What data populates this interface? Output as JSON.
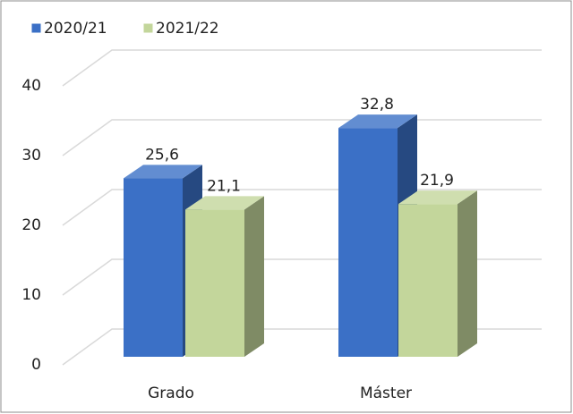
{
  "chart_data": {
    "type": "bar3d",
    "categories": [
      "Grado",
      "Máster"
    ],
    "series": [
      {
        "name": "2020/21",
        "color": "#3b70c6",
        "values": [
          25.6,
          32.8
        ],
        "value_labels": [
          "25,6",
          "32,8"
        ]
      },
      {
        "name": "2021/22",
        "color": "#c3d69b",
        "values": [
          21.1,
          21.9
        ],
        "value_labels": [
          "21,1",
          "21,9"
        ]
      }
    ],
    "ylim": [
      0,
      40
    ],
    "yticks": [
      0,
      10,
      20,
      30,
      40
    ],
    "grid": true,
    "legend": "top-left"
  }
}
